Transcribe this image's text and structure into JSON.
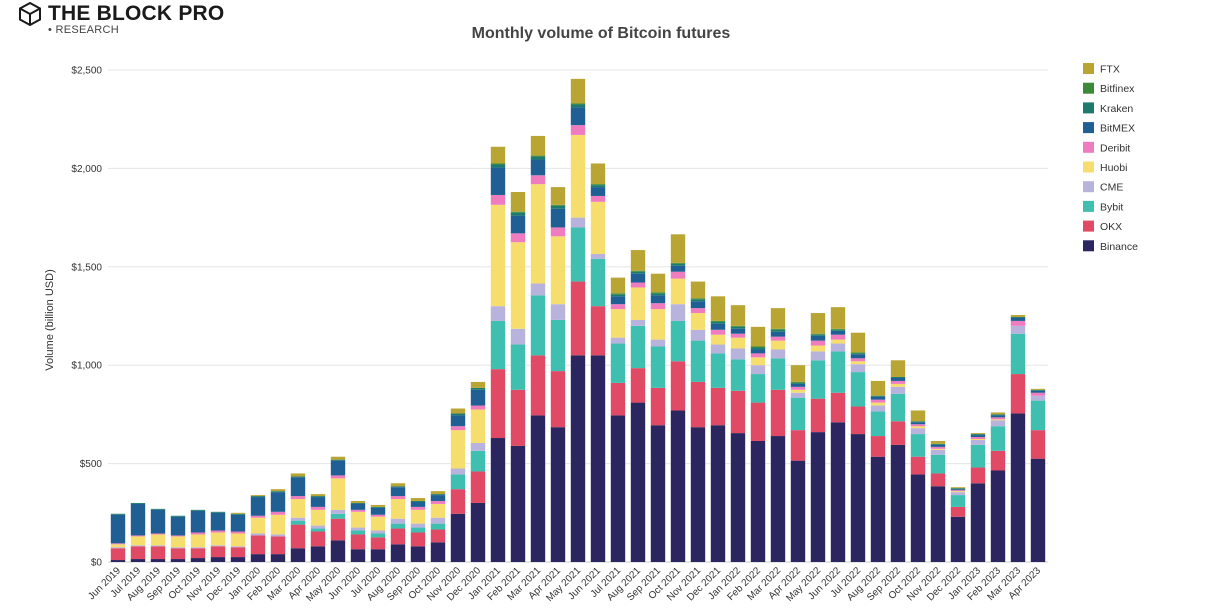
{
  "brand": {
    "name": "THE BLOCK PRO",
    "sub": "• RESEARCH"
  },
  "chart_data": {
    "type": "bar",
    "stacked": true,
    "title": "Monthly volume of Bitcoin futures",
    "ylabel": "Volume (billion USD)",
    "xlabel": "",
    "ylim": [
      0,
      2500
    ],
    "yticks": [
      0,
      500,
      1000,
      1500,
      2000,
      2500
    ],
    "ytick_labels": [
      "$0",
      "$500",
      "$1,000",
      "$1,500",
      "$2,000",
      "$2,500"
    ],
    "grid": true,
    "legend_position": "right",
    "categories": [
      "Jun 2019",
      "Jul 2019",
      "Aug 2019",
      "Sep 2019",
      "Oct 2019",
      "Nov 2019",
      "Dec 2019",
      "Jan 2020",
      "Feb 2020",
      "Mar 2020",
      "Apr 2020",
      "May 2020",
      "Jun 2020",
      "Jul 2020",
      "Aug 2020",
      "Sep 2020",
      "Oct 2020",
      "Nov 2020",
      "Dec 2020",
      "Jan 2021",
      "Feb 2021",
      "Mar 2021",
      "Apr 2021",
      "May 2021",
      "Jun 2021",
      "Jul 2021",
      "Aug 2021",
      "Sep 2021",
      "Oct 2021",
      "Nov 2021",
      "Dec 2021",
      "Jan 2022",
      "Feb 2022",
      "Mar 2022",
      "Apr 2022",
      "May 2022",
      "Jun 2022",
      "Jul 2022",
      "Aug 2022",
      "Sep 2022",
      "Oct 2022",
      "Nov 2022",
      "Dec 2022",
      "Jan 2023",
      "Feb 2023",
      "Mar 2023",
      "Apr 2023"
    ],
    "series": [
      {
        "name": "Binance",
        "color": "#2b2560",
        "values": [
          10,
          15,
          15,
          15,
          20,
          25,
          25,
          40,
          40,
          70,
          80,
          110,
          65,
          65,
          90,
          80,
          100,
          245,
          300,
          630,
          590,
          745,
          685,
          1050,
          1050,
          745,
          810,
          695,
          770,
          685,
          695,
          655,
          615,
          640,
          515,
          660,
          710,
          650,
          535,
          595,
          445,
          385,
          230,
          400,
          465,
          755,
          525
        ]
      },
      {
        "name": "OKX",
        "color": "#e04a64",
        "values": [
          60,
          65,
          65,
          55,
          50,
          55,
          50,
          95,
          90,
          120,
          75,
          110,
          75,
          60,
          80,
          70,
          65,
          125,
          160,
          350,
          285,
          305,
          285,
          375,
          250,
          165,
          175,
          190,
          250,
          230,
          190,
          215,
          195,
          235,
          155,
          170,
          150,
          140,
          105,
          120,
          90,
          65,
          50,
          80,
          100,
          200,
          145
        ]
      },
      {
        "name": "Bybit",
        "color": "#3ebfb0",
        "values": [
          0,
          0,
          0,
          0,
          0,
          0,
          0,
          0,
          0,
          20,
          15,
          25,
          20,
          20,
          25,
          25,
          30,
          75,
          105,
          245,
          230,
          305,
          260,
          275,
          240,
          200,
          215,
          210,
          205,
          210,
          175,
          160,
          145,
          160,
          165,
          195,
          210,
          175,
          125,
          140,
          115,
          95,
          60,
          115,
          125,
          205,
          150
        ]
      },
      {
        "name": "CME",
        "color": "#b8b3dd",
        "values": [
          5,
          5,
          5,
          5,
          5,
          5,
          5,
          10,
          10,
          15,
          15,
          20,
          15,
          15,
          25,
          20,
          30,
          30,
          40,
          75,
          80,
          60,
          80,
          50,
          25,
          30,
          30,
          35,
          85,
          55,
          45,
          55,
          45,
          45,
          25,
          45,
          40,
          40,
          30,
          35,
          30,
          25,
          15,
          25,
          30,
          40,
          25
        ]
      },
      {
        "name": "Huobi",
        "color": "#f5dd6e",
        "values": [
          15,
          45,
          55,
          55,
          65,
          65,
          65,
          80,
          100,
          95,
          80,
          160,
          80,
          70,
          100,
          70,
          70,
          195,
          170,
          515,
          440,
          505,
          345,
          420,
          265,
          145,
          165,
          155,
          130,
          85,
          50,
          55,
          40,
          45,
          15,
          30,
          20,
          15,
          15,
          15,
          10,
          5,
          5,
          5,
          5,
          0,
          0
        ]
      },
      {
        "name": "Deribit",
        "color": "#ef7cbf",
        "values": [
          5,
          5,
          5,
          5,
          10,
          10,
          10,
          10,
          15,
          15,
          15,
          15,
          10,
          10,
          15,
          15,
          15,
          20,
          20,
          50,
          45,
          45,
          45,
          50,
          30,
          25,
          25,
          30,
          35,
          25,
          25,
          20,
          20,
          20,
          15,
          25,
          25,
          15,
          15,
          15,
          10,
          10,
          5,
          10,
          10,
          25,
          15
        ]
      },
      {
        "name": "BitMEX",
        "color": "#1f5f93",
        "values": [
          145,
          160,
          120,
          95,
          110,
          90,
          85,
          95,
          100,
          95,
          50,
          75,
          30,
          35,
          45,
          25,
          30,
          55,
          80,
          140,
          90,
          80,
          95,
          90,
          45,
          40,
          45,
          40,
          30,
          35,
          30,
          25,
          20,
          25,
          15,
          25,
          20,
          20,
          15,
          15,
          10,
          10,
          5,
          10,
          10,
          15,
          10
        ]
      },
      {
        "name": "Kraken",
        "color": "#1f7a6e",
        "values": [
          5,
          5,
          5,
          5,
          5,
          5,
          5,
          5,
          5,
          5,
          5,
          5,
          5,
          5,
          5,
          5,
          5,
          10,
          10,
          15,
          15,
          15,
          15,
          15,
          10,
          10,
          10,
          10,
          10,
          10,
          10,
          10,
          10,
          10,
          5,
          5,
          5,
          5,
          5,
          5,
          5,
          5,
          5,
          5,
          5,
          5,
          5
        ]
      },
      {
        "name": "Bitfinex",
        "color": "#3a8a3a",
        "values": [
          0,
          0,
          0,
          0,
          0,
          0,
          0,
          0,
          0,
          0,
          0,
          0,
          0,
          0,
          0,
          0,
          0,
          0,
          0,
          5,
          5,
          5,
          5,
          5,
          5,
          5,
          5,
          5,
          5,
          5,
          5,
          5,
          5,
          5,
          5,
          5,
          5,
          5,
          0,
          0,
          0,
          0,
          0,
          0,
          0,
          0,
          0
        ]
      },
      {
        "name": "FTX",
        "color": "#b9a534",
        "values": [
          0,
          0,
          0,
          0,
          0,
          0,
          5,
          5,
          10,
          15,
          10,
          15,
          10,
          10,
          15,
          15,
          15,
          25,
          30,
          85,
          100,
          100,
          90,
          125,
          105,
          80,
          105,
          95,
          145,
          85,
          125,
          105,
          100,
          105,
          85,
          105,
          110,
          100,
          75,
          85,
          55,
          15,
          5,
          5,
          10,
          10,
          5
        ]
      }
    ]
  }
}
